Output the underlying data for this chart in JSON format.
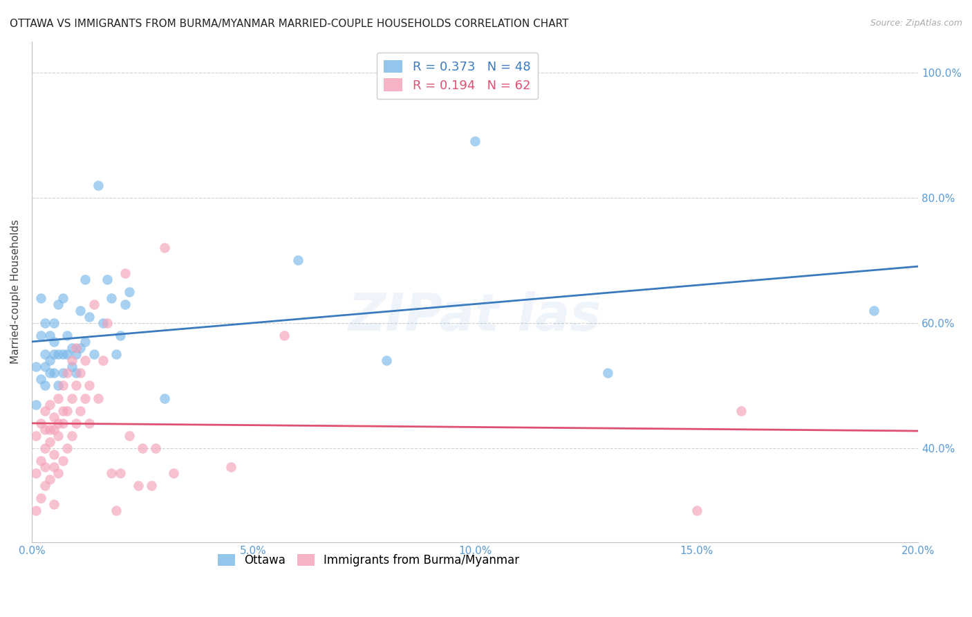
{
  "title": "OTTAWA VS IMMIGRANTS FROM BURMA/MYANMAR MARRIED-COUPLE HOUSEHOLDS CORRELATION CHART",
  "source": "Source: ZipAtlas.com",
  "ylabel": "Married-couple Households",
  "xlabel": "",
  "xlim": [
    0.0,
    0.2
  ],
  "ylim": [
    0.25,
    1.05
  ],
  "xticks": [
    0.0,
    0.05,
    0.1,
    0.15,
    0.2
  ],
  "yticks": [
    0.4,
    0.6,
    0.8,
    1.0
  ],
  "xtick_labels": [
    "0.0%",
    "5.0%",
    "10.0%",
    "15.0%",
    "20.0%"
  ],
  "ytick_labels": [
    "40.0%",
    "60.0%",
    "80.0%",
    "100.0%"
  ],
  "legend1_label": "Ottawa",
  "legend2_label": "Immigrants from Burma/Myanmar",
  "series1_color": "#7ab8e8",
  "series2_color": "#f4a0b8",
  "line1_color": "#3a7bbf",
  "line2_color": "#e05070",
  "R1": 0.373,
  "N1": 48,
  "R2": 0.194,
  "N2": 62,
  "title_fontsize": 11,
  "label_fontsize": 11,
  "tick_fontsize": 11,
  "series1_x": [
    0.001,
    0.001,
    0.002,
    0.002,
    0.002,
    0.003,
    0.003,
    0.003,
    0.003,
    0.004,
    0.004,
    0.004,
    0.005,
    0.005,
    0.005,
    0.005,
    0.006,
    0.006,
    0.006,
    0.007,
    0.007,
    0.007,
    0.008,
    0.008,
    0.009,
    0.009,
    0.01,
    0.01,
    0.011,
    0.011,
    0.012,
    0.012,
    0.013,
    0.014,
    0.015,
    0.016,
    0.017,
    0.018,
    0.019,
    0.02,
    0.021,
    0.022,
    0.03,
    0.06,
    0.08,
    0.1,
    0.13,
    0.19
  ],
  "series1_y": [
    0.47,
    0.53,
    0.51,
    0.58,
    0.64,
    0.5,
    0.55,
    0.6,
    0.53,
    0.54,
    0.58,
    0.52,
    0.57,
    0.52,
    0.6,
    0.55,
    0.5,
    0.55,
    0.63,
    0.64,
    0.55,
    0.52,
    0.55,
    0.58,
    0.53,
    0.56,
    0.52,
    0.55,
    0.56,
    0.62,
    0.57,
    0.67,
    0.61,
    0.55,
    0.82,
    0.6,
    0.67,
    0.64,
    0.55,
    0.58,
    0.63,
    0.65,
    0.48,
    0.7,
    0.54,
    0.89,
    0.52,
    0.62
  ],
  "series2_x": [
    0.001,
    0.001,
    0.001,
    0.002,
    0.002,
    0.002,
    0.003,
    0.003,
    0.003,
    0.003,
    0.003,
    0.004,
    0.004,
    0.004,
    0.004,
    0.005,
    0.005,
    0.005,
    0.005,
    0.005,
    0.006,
    0.006,
    0.006,
    0.006,
    0.007,
    0.007,
    0.007,
    0.007,
    0.008,
    0.008,
    0.008,
    0.009,
    0.009,
    0.009,
    0.01,
    0.01,
    0.01,
    0.011,
    0.011,
    0.012,
    0.012,
    0.013,
    0.013,
    0.014,
    0.015,
    0.016,
    0.017,
    0.018,
    0.019,
    0.02,
    0.021,
    0.022,
    0.024,
    0.025,
    0.027,
    0.028,
    0.03,
    0.032,
    0.045,
    0.057,
    0.15,
    0.16
  ],
  "series2_y": [
    0.3,
    0.36,
    0.42,
    0.32,
    0.38,
    0.44,
    0.34,
    0.4,
    0.46,
    0.43,
    0.37,
    0.35,
    0.41,
    0.47,
    0.43,
    0.31,
    0.37,
    0.43,
    0.39,
    0.45,
    0.36,
    0.42,
    0.48,
    0.44,
    0.38,
    0.44,
    0.5,
    0.46,
    0.4,
    0.46,
    0.52,
    0.42,
    0.48,
    0.54,
    0.44,
    0.5,
    0.56,
    0.46,
    0.52,
    0.48,
    0.54,
    0.5,
    0.44,
    0.63,
    0.48,
    0.54,
    0.6,
    0.36,
    0.3,
    0.36,
    0.68,
    0.42,
    0.34,
    0.4,
    0.34,
    0.4,
    0.72,
    0.36,
    0.37,
    0.58,
    0.3,
    0.46
  ]
}
